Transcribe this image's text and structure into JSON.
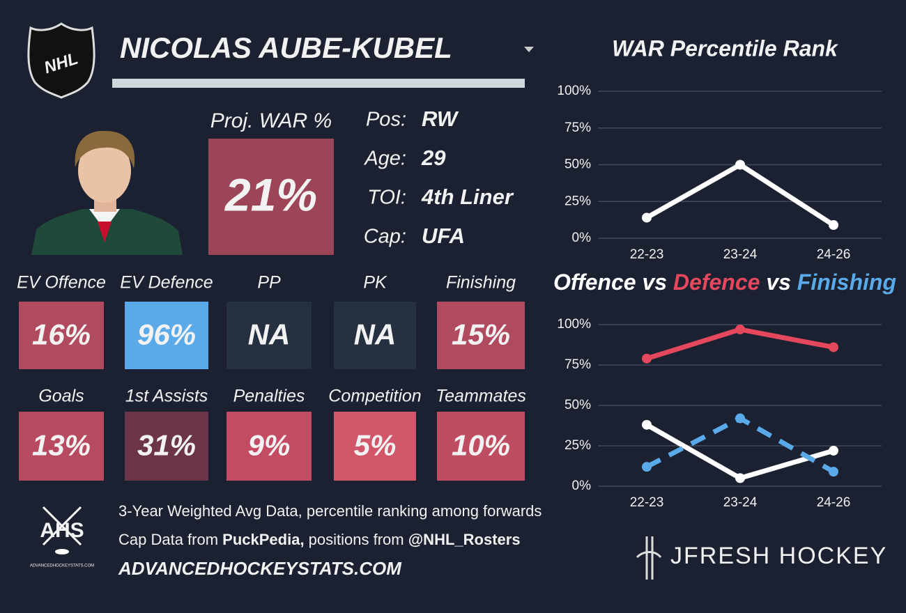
{
  "header": {
    "logo": "NHL",
    "name": "NICOLAS AUBE-KUBEL"
  },
  "projection": {
    "label": "Proj. WAR %",
    "value": 21,
    "value_label": "21%",
    "color": "#9c4558"
  },
  "info": [
    {
      "label": "Pos:",
      "value": "RW"
    },
    {
      "label": "Age:",
      "value": "29"
    },
    {
      "label": "TOI:",
      "value": "4th Liner"
    },
    {
      "label": "Cap:",
      "value": "UFA"
    }
  ],
  "tiles": [
    {
      "label": "EV Offence",
      "value": 16,
      "value_label": "16%",
      "color": "#b04a5e"
    },
    {
      "label": "EV Defence",
      "value": 96,
      "value_label": "96%",
      "color": "#5aa9e8"
    },
    {
      "label": "PP",
      "value": null,
      "value_label": "NA",
      "color": "#253040"
    },
    {
      "label": "PK",
      "value": null,
      "value_label": "NA",
      "color": "#253040"
    },
    {
      "label": "Finishing",
      "value": 15,
      "value_label": "15%",
      "color": "#b04a5e"
    },
    {
      "label": "Goals",
      "value": 13,
      "value_label": "13%",
      "color": "#b84a60"
    },
    {
      "label": "1st Assists",
      "value": 31,
      "value_label": "31%",
      "color": "#6c3449"
    },
    {
      "label": "Penalties",
      "value": 9,
      "value_label": "9%",
      "color": "#c44c62"
    },
    {
      "label": "Competition",
      "value": 5,
      "value_label": "5%",
      "color": "#d2566a"
    },
    {
      "label": "Teammates",
      "value": 10,
      "value_label": "10%",
      "color": "#bf4d62"
    }
  ],
  "footer": {
    "ahs": "AHS",
    "ahs_site": "ADVANCEDHOCKEYSTATS.COM",
    "line1": "3-Year Weighted Avg Data, percentile ranking among forwards",
    "line2": [
      "Cap Data from ",
      "PuckPedia,",
      " positions from ",
      "@NHL_Rosters"
    ],
    "url": "ADVANCEDHOCKEYSTATS.COM",
    "brand": "JFRESH HOCKEY"
  },
  "chart_data": [
    {
      "type": "line",
      "title": "WAR Percentile Rank",
      "categories": [
        "22-23",
        "23-24",
        "24-26"
      ],
      "series": [
        {
          "color": "#ffffff",
          "values": [
            14,
            50,
            9
          ]
        }
      ],
      "ylim": [
        0,
        100
      ],
      "yticks": [
        {
          "value": 0,
          "label": "0%"
        },
        {
          "value": 25,
          "label": "25%"
        },
        {
          "value": 50,
          "label": "50%"
        },
        {
          "value": 75,
          "label": "75%"
        },
        {
          "value": 100,
          "label": "100%"
        }
      ],
      "grid": true
    },
    {
      "type": "line",
      "title_separator": "vs",
      "categories": [
        "22-23",
        "23-24",
        "24-26"
      ],
      "series": [
        {
          "name": "Offence",
          "color": "#ffffff",
          "values": [
            38,
            5,
            22
          ]
        },
        {
          "name": "Defence",
          "color": "#e5485d",
          "values": [
            79,
            97,
            86
          ]
        },
        {
          "name": "Finishing",
          "color": "#5aa9e8",
          "values": [
            12,
            42,
            9
          ],
          "dashed": true
        }
      ],
      "ylim": [
        0,
        100
      ],
      "yticks": [
        {
          "value": 0,
          "label": "0%"
        },
        {
          "value": 25,
          "label": "25%"
        },
        {
          "value": 50,
          "label": "50%"
        },
        {
          "value": 75,
          "label": "75%"
        },
        {
          "value": 100,
          "label": "100%"
        }
      ],
      "grid": true
    }
  ]
}
